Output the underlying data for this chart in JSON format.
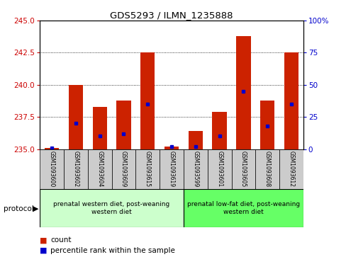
{
  "title": "GDS5293 / ILMN_1235888",
  "samples": [
    "GSM1093600",
    "GSM1093602",
    "GSM1093604",
    "GSM1093609",
    "GSM1093615",
    "GSM1093619",
    "GSM1093599",
    "GSM1093601",
    "GSM1093605",
    "GSM1093608",
    "GSM1093612"
  ],
  "red_values": [
    235.1,
    240.0,
    238.3,
    238.8,
    242.5,
    235.2,
    236.4,
    237.9,
    243.8,
    238.8,
    242.5
  ],
  "blue_pct": [
    1,
    20,
    10,
    12,
    35,
    2,
    2,
    10,
    45,
    18,
    35
  ],
  "ymin": 235,
  "ymax": 245,
  "yticks_left": [
    235,
    237.5,
    240,
    242.5,
    245
  ],
  "yticks_right": [
    0,
    25,
    50,
    75,
    100
  ],
  "group1_label": "prenatal western diet, post-weaning\nwestern diet",
  "group2_label": "prenatal low-fat diet, post-weaning\nwestern diet",
  "group1_indices": [
    0,
    1,
    2,
    3,
    4,
    5
  ],
  "group2_indices": [
    6,
    7,
    8,
    9,
    10
  ],
  "protocol_label": "protocol",
  "legend_count": "count",
  "legend_pct": "percentile rank within the sample",
  "bar_color": "#cc2200",
  "dot_color": "#0000cc",
  "group1_bg": "#ccffcc",
  "group2_bg": "#66ff66",
  "sample_bg": "#cccccc",
  "bar_base": 235,
  "bar_width": 0.6,
  "left_tick_color": "#cc0000",
  "right_tick_color": "#0000cc"
}
